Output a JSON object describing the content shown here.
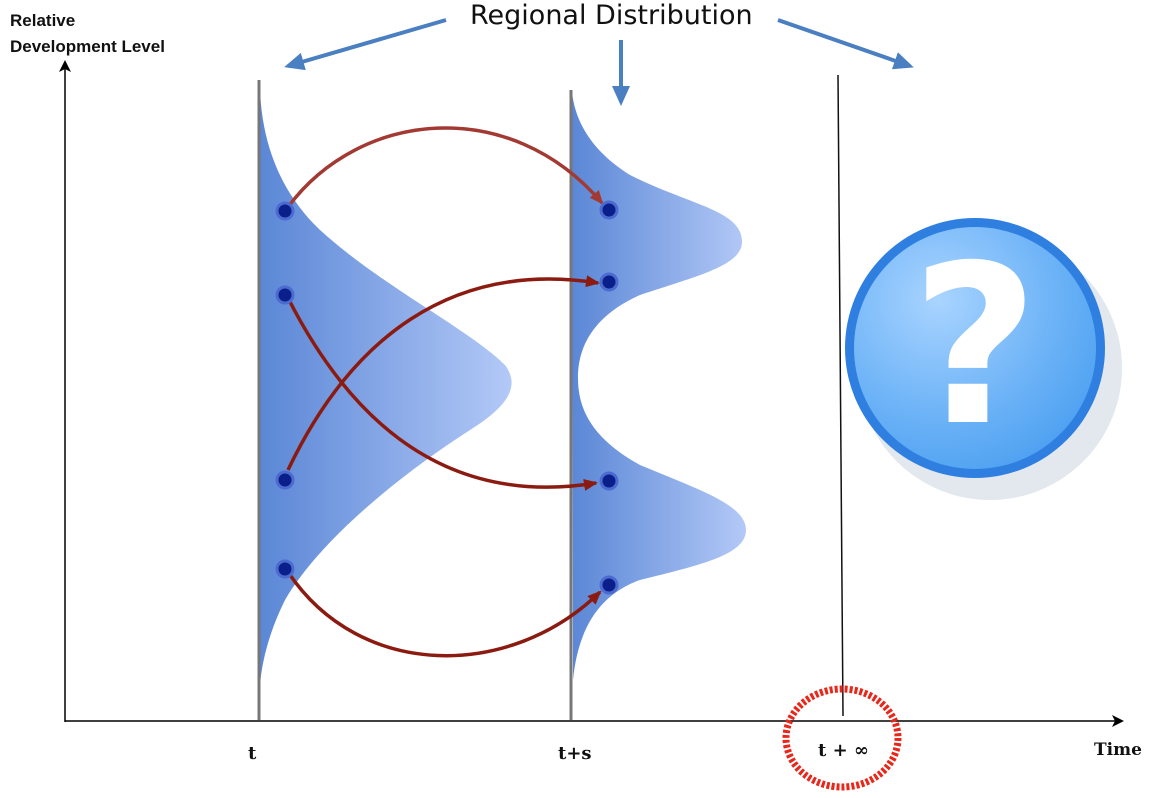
{
  "title": "Regional Distribution",
  "y_axis_label_line1": "Relative",
  "y_axis_label_line2": "Development Level",
  "x_axis_label": "Time",
  "ticks": {
    "t": "t",
    "ts": "t+s",
    "tinf": "t + ∞"
  },
  "question_mark": "?",
  "colors": {
    "distribution_fill": "#5b87d6",
    "distribution_fill_light": "#a9c2f5",
    "transition_arrow": "#8b1a10",
    "pointer_arrow": "#4a7fc1",
    "dot": "#0b1f8a",
    "highlight_circle": "#e8271a",
    "question_circle": "#3d8ee8"
  },
  "icons": [
    "question-mark-icon"
  ]
}
